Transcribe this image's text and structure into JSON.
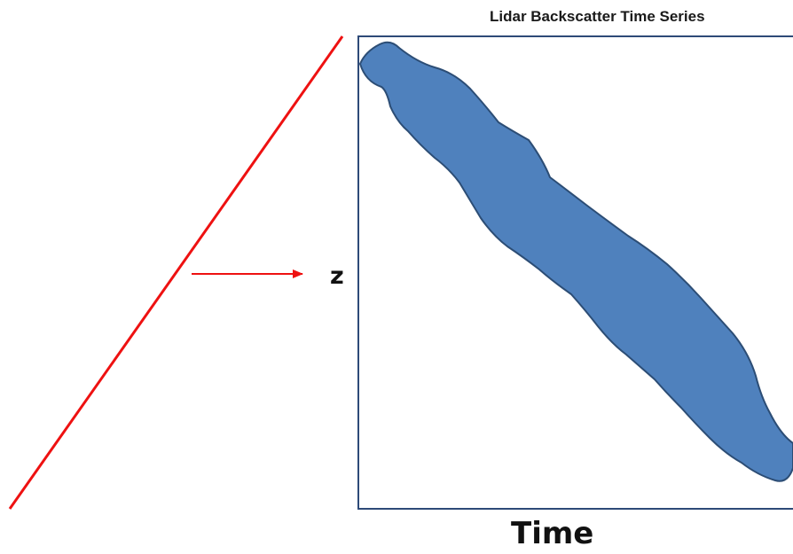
{
  "diagram": {
    "title": "Lidar Backscatter Time Series",
    "y_axis_label": "z",
    "x_axis_label": "Time"
  },
  "colors": {
    "slant_line": "#ee1111",
    "arrow": "#ee1111",
    "frame": "#2e4a78",
    "backscatter_fill": "#4f81bd",
    "backscatter_stroke": "#2c4d75"
  }
}
